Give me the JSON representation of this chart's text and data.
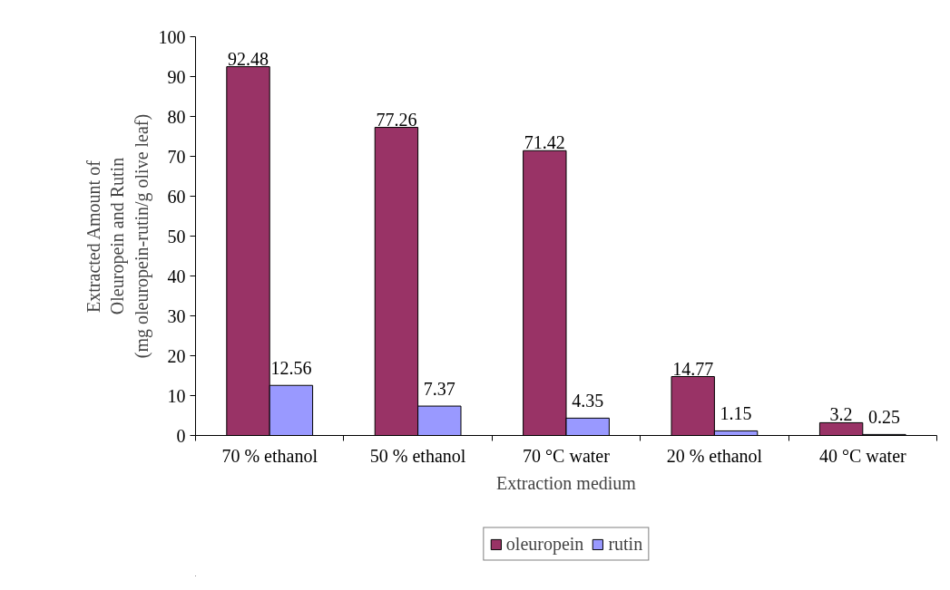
{
  "chart_data": {
    "type": "bar",
    "xlabel": "Extraction medium",
    "ylabel": "Extracted Amount of\nOleuropein and Rutin\n(mg oleuropein-rutin/g olive leaf)",
    "categories": [
      "70 % ethanol",
      "50 % ethanol",
      "70 °C water",
      "20 % ethanol",
      "40 °C water"
    ],
    "series": [
      {
        "name": "oleuropein",
        "color": "#993366",
        "values": [
          92.48,
          77.26,
          71.42,
          14.77,
          3.2
        ]
      },
      {
        "name": "rutin",
        "color": "#9999ff",
        "values": [
          12.56,
          7.37,
          4.35,
          1.15,
          0.25
        ]
      }
    ],
    "ylim": [
      0,
      100
    ],
    "yticks": [
      0,
      10,
      20,
      30,
      40,
      50,
      60,
      70,
      80,
      90,
      100
    ],
    "data_labels": true,
    "grid": false,
    "legend": "bottom"
  }
}
